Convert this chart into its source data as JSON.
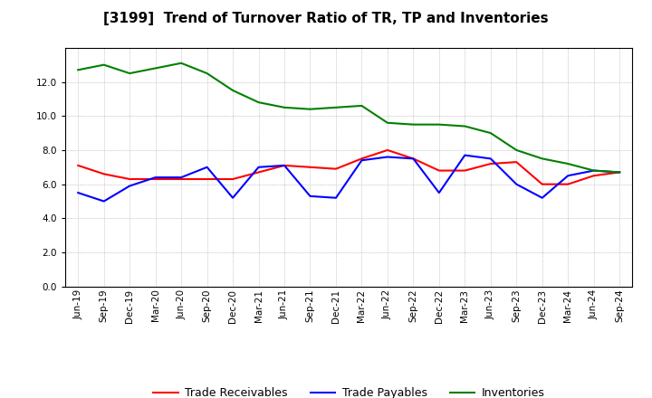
{
  "title": "[3199]  Trend of Turnover Ratio of TR, TP and Inventories",
  "x_labels": [
    "Jun-19",
    "Sep-19",
    "Dec-19",
    "Mar-20",
    "Jun-20",
    "Sep-20",
    "Dec-20",
    "Mar-21",
    "Jun-21",
    "Sep-21",
    "Dec-21",
    "Mar-22",
    "Jun-22",
    "Sep-22",
    "Dec-22",
    "Mar-23",
    "Jun-23",
    "Sep-23",
    "Dec-23",
    "Mar-24",
    "Jun-24",
    "Sep-24"
  ],
  "trade_receivables": [
    7.1,
    6.6,
    6.3,
    6.3,
    6.3,
    6.3,
    6.3,
    6.7,
    7.1,
    7.0,
    6.9,
    7.5,
    8.0,
    7.5,
    6.8,
    6.8,
    7.2,
    7.3,
    6.0,
    6.0,
    6.5,
    6.7
  ],
  "trade_payables": [
    5.5,
    5.0,
    5.9,
    6.4,
    6.4,
    7.0,
    5.2,
    7.0,
    7.1,
    5.3,
    5.2,
    7.4,
    7.6,
    7.5,
    5.5,
    7.7,
    7.5,
    6.0,
    5.2,
    6.5,
    6.8,
    6.7
  ],
  "inventories": [
    12.7,
    13.0,
    12.5,
    12.8,
    13.1,
    12.5,
    11.5,
    10.8,
    10.5,
    10.4,
    10.5,
    10.6,
    9.6,
    9.5,
    9.5,
    9.4,
    9.0,
    8.0,
    7.5,
    7.2,
    6.8,
    6.7
  ],
  "ylim": [
    0.0,
    14.0
  ],
  "yticks": [
    0.0,
    2.0,
    4.0,
    6.0,
    8.0,
    10.0,
    12.0
  ],
  "colors": {
    "trade_receivables": "#FF0000",
    "trade_payables": "#0000FF",
    "inventories": "#008000"
  },
  "legend_labels": [
    "Trade Receivables",
    "Trade Payables",
    "Inventories"
  ],
  "background_color": "#FFFFFF",
  "grid_color": "#999999",
  "title_fontsize": 11,
  "tick_fontsize": 7.5,
  "legend_fontsize": 9
}
